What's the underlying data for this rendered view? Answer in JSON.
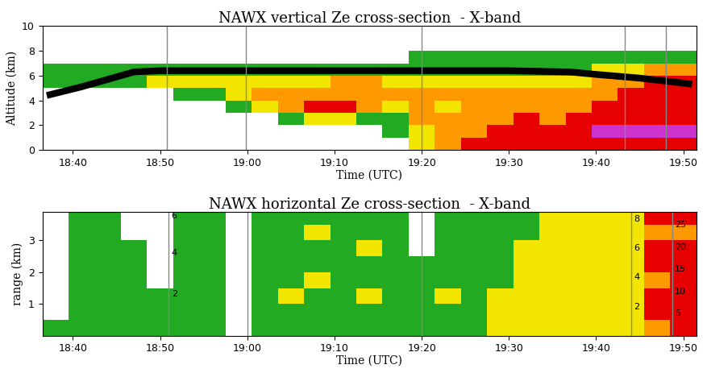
{
  "chart_data": [
    {
      "type": "heatmap",
      "title": "NAWX vertical Ze cross-section  - X-band",
      "x_label": "Time (UTC)",
      "y_label": "Altitude (km)",
      "xlim": [
        36.5,
        111.5
      ],
      "xticks": [
        {
          "value": 40,
          "label": "18:40"
        },
        {
          "value": 50,
          "label": "18:50"
        },
        {
          "value": 60,
          "label": "19:00"
        },
        {
          "value": 70,
          "label": "19:10"
        },
        {
          "value": 80,
          "label": "19:20"
        },
        {
          "value": 90,
          "label": "19:30"
        },
        {
          "value": 100,
          "label": "19:40"
        },
        {
          "value": 110,
          "label": "19:50"
        }
      ],
      "ylim": [
        0,
        10
      ],
      "yticks": [
        0,
        2,
        4,
        6,
        8,
        10
      ],
      "colors": [
        "#ffffff",
        "#22aa22",
        "#f2e600",
        "#ff9900",
        "#e60000",
        "#cc33cc"
      ],
      "x_edges": [
        36.5,
        39.5,
        42.5,
        45.5,
        48.5,
        51.5,
        54.5,
        57.5,
        60.5,
        63.5,
        66.5,
        69.5,
        72.5,
        75.5,
        78.5,
        81.5,
        84.5,
        87.5,
        90.5,
        93.5,
        96.5,
        99.5,
        102.5,
        105.5,
        108.5,
        111.5
      ],
      "y_edges": [
        0,
        1,
        2,
        3,
        4,
        5,
        6,
        7,
        8,
        9,
        10
      ],
      "cells": [
        [
          0,
          0,
          0,
          0,
          0,
          1,
          1,
          0,
          0,
          0
        ],
        [
          0,
          0,
          0,
          0,
          0,
          1,
          1,
          0,
          0,
          0
        ],
        [
          0,
          0,
          0,
          0,
          0,
          1,
          1,
          0,
          0,
          0
        ],
        [
          0,
          0,
          0,
          0,
          0,
          1,
          1,
          0,
          0,
          0
        ],
        [
          0,
          0,
          0,
          0,
          0,
          2,
          1,
          0,
          0,
          0
        ],
        [
          0,
          0,
          0,
          0,
          1,
          2,
          1,
          0,
          0,
          0
        ],
        [
          0,
          0,
          0,
          0,
          1,
          2,
          1,
          0,
          0,
          0
        ],
        [
          0,
          0,
          0,
          1,
          2,
          2,
          1,
          0,
          0,
          0
        ],
        [
          0,
          0,
          0,
          2,
          3,
          2,
          1,
          0,
          0,
          0
        ],
        [
          0,
          0,
          1,
          3,
          3,
          2,
          1,
          0,
          0,
          0
        ],
        [
          0,
          0,
          2,
          4,
          3,
          2,
          1,
          0,
          0,
          0
        ],
        [
          0,
          0,
          2,
          4,
          3,
          3,
          1,
          0,
          0,
          0
        ],
        [
          0,
          0,
          1,
          3,
          3,
          3,
          1,
          0,
          0,
          0
        ],
        [
          0,
          1,
          1,
          2,
          3,
          2,
          1,
          0,
          0,
          0
        ],
        [
          2,
          2,
          3,
          3,
          3,
          2,
          1,
          1,
          0,
          0
        ],
        [
          3,
          3,
          3,
          2,
          3,
          2,
          1,
          1,
          0,
          0
        ],
        [
          4,
          3,
          3,
          3,
          3,
          2,
          1,
          1,
          0,
          0
        ],
        [
          4,
          4,
          3,
          3,
          3,
          2,
          1,
          1,
          0,
          0
        ],
        [
          4,
          4,
          4,
          3,
          3,
          2,
          1,
          1,
          0,
          0
        ],
        [
          4,
          4,
          3,
          3,
          3,
          2,
          1,
          1,
          0,
          0
        ],
        [
          4,
          4,
          4,
          3,
          3,
          2,
          1,
          1,
          0,
          0
        ],
        [
          4,
          5,
          4,
          4,
          3,
          3,
          2,
          1,
          0,
          0
        ],
        [
          4,
          5,
          4,
          4,
          4,
          3,
          2,
          1,
          0,
          0
        ],
        [
          4,
          5,
          4,
          4,
          4,
          4,
          3,
          1,
          0,
          0
        ],
        [
          4,
          5,
          4,
          4,
          4,
          4,
          3,
          1,
          0,
          0
        ]
      ],
      "line": {
        "x": [
          37,
          41,
          45,
          47,
          50,
          60,
          70,
          80,
          90,
          97,
          100,
          105,
          110,
          111
        ],
        "values": [
          4.4,
          5.1,
          5.9,
          6.3,
          6.4,
          6.4,
          6.4,
          6.4,
          6.4,
          6.3,
          6.1,
          5.8,
          5.4,
          5.3
        ],
        "color": "#000000"
      },
      "dividers": [
        50.8,
        59.8,
        80.0,
        103.3,
        108.0
      ]
    },
    {
      "type": "heatmap",
      "title": "NAWX horizontal Ze cross-section  - X-band",
      "x_label": "Time (UTC)",
      "y_label": "range (km)",
      "xlim": [
        36.5,
        111.5
      ],
      "xticks": [
        {
          "value": 40,
          "label": "18:40"
        },
        {
          "value": 50,
          "label": "18:50"
        },
        {
          "value": 60,
          "label": "19:00"
        },
        {
          "value": 70,
          "label": "19:10"
        },
        {
          "value": 80,
          "label": "19:20"
        },
        {
          "value": 90,
          "label": "19:30"
        },
        {
          "value": 100,
          "label": "19:40"
        },
        {
          "value": 110,
          "label": "19:50"
        }
      ],
      "ylim": [
        0,
        3.9
      ],
      "yticks": [
        1,
        2,
        3
      ],
      "colors": [
        "#ffffff",
        "#22aa22",
        "#f2e600",
        "#ff9900",
        "#e60000",
        "#cc33cc"
      ],
      "x_edges": [
        36.5,
        39.5,
        42.5,
        45.5,
        48.5,
        51.5,
        54.5,
        57.5,
        60.5,
        63.5,
        66.5,
        69.5,
        72.5,
        75.5,
        78.5,
        81.5,
        84.5,
        87.5,
        90.5,
        93.5,
        96.5,
        99.5,
        102.5,
        105.5,
        108.5,
        111.5
      ],
      "y_edges": [
        0,
        0.5,
        1,
        1.5,
        2,
        2.5,
        3,
        3.5,
        4
      ],
      "cells": [
        [
          1,
          0,
          0,
          0,
          0,
          0,
          0,
          0
        ],
        [
          1,
          1,
          1,
          1,
          1,
          1,
          1,
          1
        ],
        [
          1,
          1,
          1,
          1,
          1,
          1,
          1,
          1
        ],
        [
          1,
          1,
          1,
          1,
          1,
          1,
          0,
          0
        ],
        [
          1,
          1,
          1,
          0,
          0,
          0,
          0,
          0
        ],
        [
          1,
          1,
          1,
          1,
          1,
          1,
          1,
          1
        ],
        [
          1,
          1,
          1,
          1,
          1,
          1,
          1,
          1
        ],
        [
          0,
          0,
          0,
          0,
          0,
          0,
          0,
          0
        ],
        [
          1,
          1,
          1,
          1,
          1,
          1,
          1,
          1
        ],
        [
          1,
          1,
          2,
          1,
          1,
          1,
          1,
          1
        ],
        [
          1,
          1,
          1,
          2,
          1,
          1,
          2,
          1
        ],
        [
          1,
          1,
          1,
          1,
          1,
          1,
          1,
          1
        ],
        [
          1,
          1,
          2,
          1,
          1,
          2,
          1,
          1
        ],
        [
          1,
          1,
          1,
          1,
          1,
          1,
          1,
          1
        ],
        [
          1,
          1,
          1,
          1,
          1,
          0,
          0,
          0
        ],
        [
          1,
          1,
          2,
          1,
          1,
          1,
          1,
          1
        ],
        [
          1,
          1,
          1,
          1,
          1,
          1,
          1,
          1
        ],
        [
          2,
          2,
          2,
          1,
          1,
          1,
          1,
          1
        ],
        [
          2,
          2,
          2,
          2,
          2,
          2,
          1,
          1
        ],
        [
          2,
          2,
          2,
          2,
          2,
          2,
          2,
          2
        ],
        [
          2,
          2,
          2,
          2,
          2,
          2,
          2,
          2
        ],
        [
          2,
          2,
          2,
          2,
          2,
          2,
          2,
          2
        ],
        [
          2,
          2,
          2,
          2,
          2,
          2,
          2,
          2
        ],
        [
          3,
          4,
          4,
          3,
          4,
          4,
          3,
          4
        ],
        [
          4,
          4,
          4,
          4,
          4,
          4,
          3,
          4
        ]
      ],
      "dividers": [
        51.0,
        60.0,
        80.0,
        104.0,
        108.7
      ],
      "segments": [
        {
          "x": 51.0,
          "ylim": [
            0,
            6
          ],
          "yticks": [
            2,
            4,
            6
          ]
        },
        {
          "x": 104.0,
          "ylim": [
            0,
            8.5
          ],
          "yticks": [
            2,
            4,
            6,
            8
          ]
        },
        {
          "x": 108.7,
          "ylim": [
            0,
            28
          ],
          "yticks": [
            5,
            10,
            15,
            20,
            25
          ]
        }
      ]
    }
  ]
}
